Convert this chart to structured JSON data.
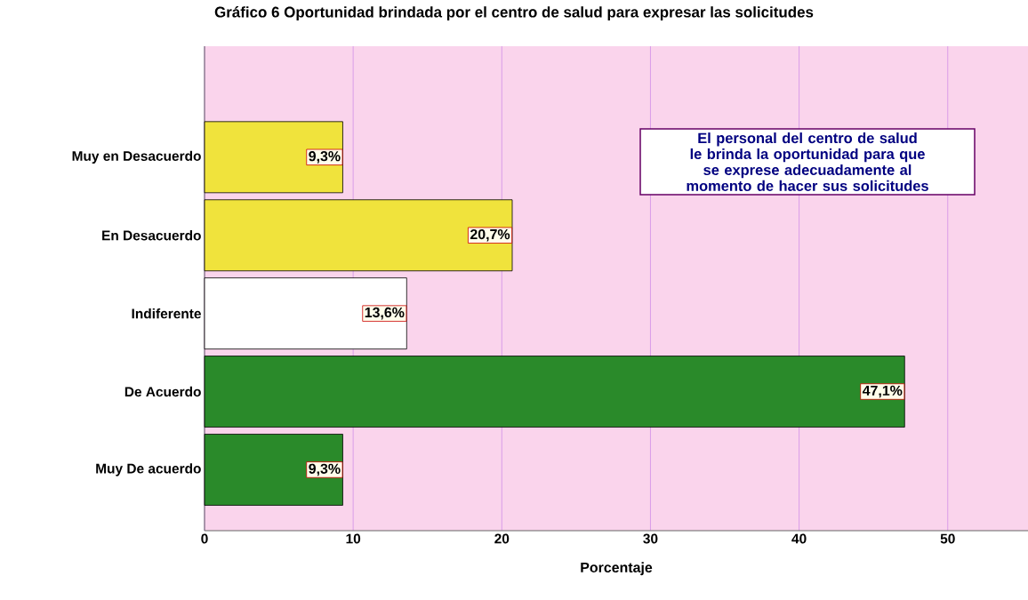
{
  "chart_data": {
    "type": "bar",
    "orientation": "horizontal",
    "title": "Gráfico 6 Oportunidad brindada por el centro de salud para expresar las solicitudes",
    "xlabel": "Porcentaje",
    "categories": [
      "Muy en Desacuerdo",
      "En Desacuerdo",
      "Indiferente",
      "De Acuerdo",
      "Muy De acuerdo"
    ],
    "values": [
      9.3,
      20.7,
      13.6,
      47.1,
      9.3
    ],
    "colors": [
      "#f0e33c",
      "#f0e33c",
      "#ffffff",
      "#2a8a2a",
      "#2a8a2a"
    ],
    "value_labels": [
      "9,3%",
      "20,7%",
      "13,6%",
      "47,1%",
      "9,3%"
    ],
    "xlim": [
      0,
      55.4
    ],
    "xticks": [
      0,
      10,
      20,
      30,
      40,
      50
    ],
    "grid": "x",
    "annotations": [
      "El personal del centro de salud le brinda la oportunidad para que se exprese adecuadamente al momento de hacer sus solicitudes"
    ]
  }
}
